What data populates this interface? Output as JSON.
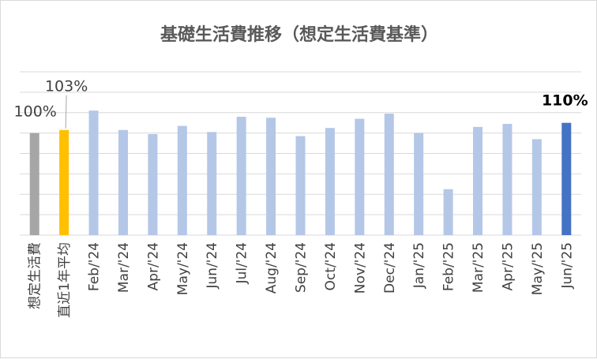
{
  "chart_data": {
    "type": "bar",
    "title": "基礎生活費推移（想定生活費基準）",
    "categories": [
      "想定生活費",
      "直近1年平均",
      "Feb/'24",
      "Mar/'24",
      "Apr/'24",
      "May/'24",
      "Jun/'24",
      "Jul/'24",
      "Aug/'24",
      "Sep/'24",
      "Oct/'24",
      "Nov/'24",
      "Dec/'24",
      "Jan/'25",
      "Feb/'25",
      "Mar/'25",
      "Apr/'25",
      "May/'25",
      "Jun/'25"
    ],
    "values": [
      100,
      103,
      122,
      103,
      99,
      107,
      101,
      116,
      115,
      97,
      105,
      114,
      119,
      100,
      45,
      106,
      109,
      94,
      110
    ],
    "ylim": [
      0,
      160
    ],
    "grid": true,
    "colors": [
      "#a6a6a6",
      "#ffc000",
      "#b4c7e7",
      "#b4c7e7",
      "#b4c7e7",
      "#b4c7e7",
      "#b4c7e7",
      "#b4c7e7",
      "#b4c7e7",
      "#b4c7e7",
      "#b4c7e7",
      "#b4c7e7",
      "#b4c7e7",
      "#b4c7e7",
      "#b4c7e7",
      "#b4c7e7",
      "#b4c7e7",
      "#b4c7e7",
      "#4472c4"
    ],
    "annotations": [
      {
        "label": "100%",
        "category": "想定生活費"
      },
      {
        "label": "103%",
        "category": "直近1年平均"
      },
      {
        "label": "110%",
        "category": "Jun/'25",
        "bold": true
      }
    ]
  }
}
